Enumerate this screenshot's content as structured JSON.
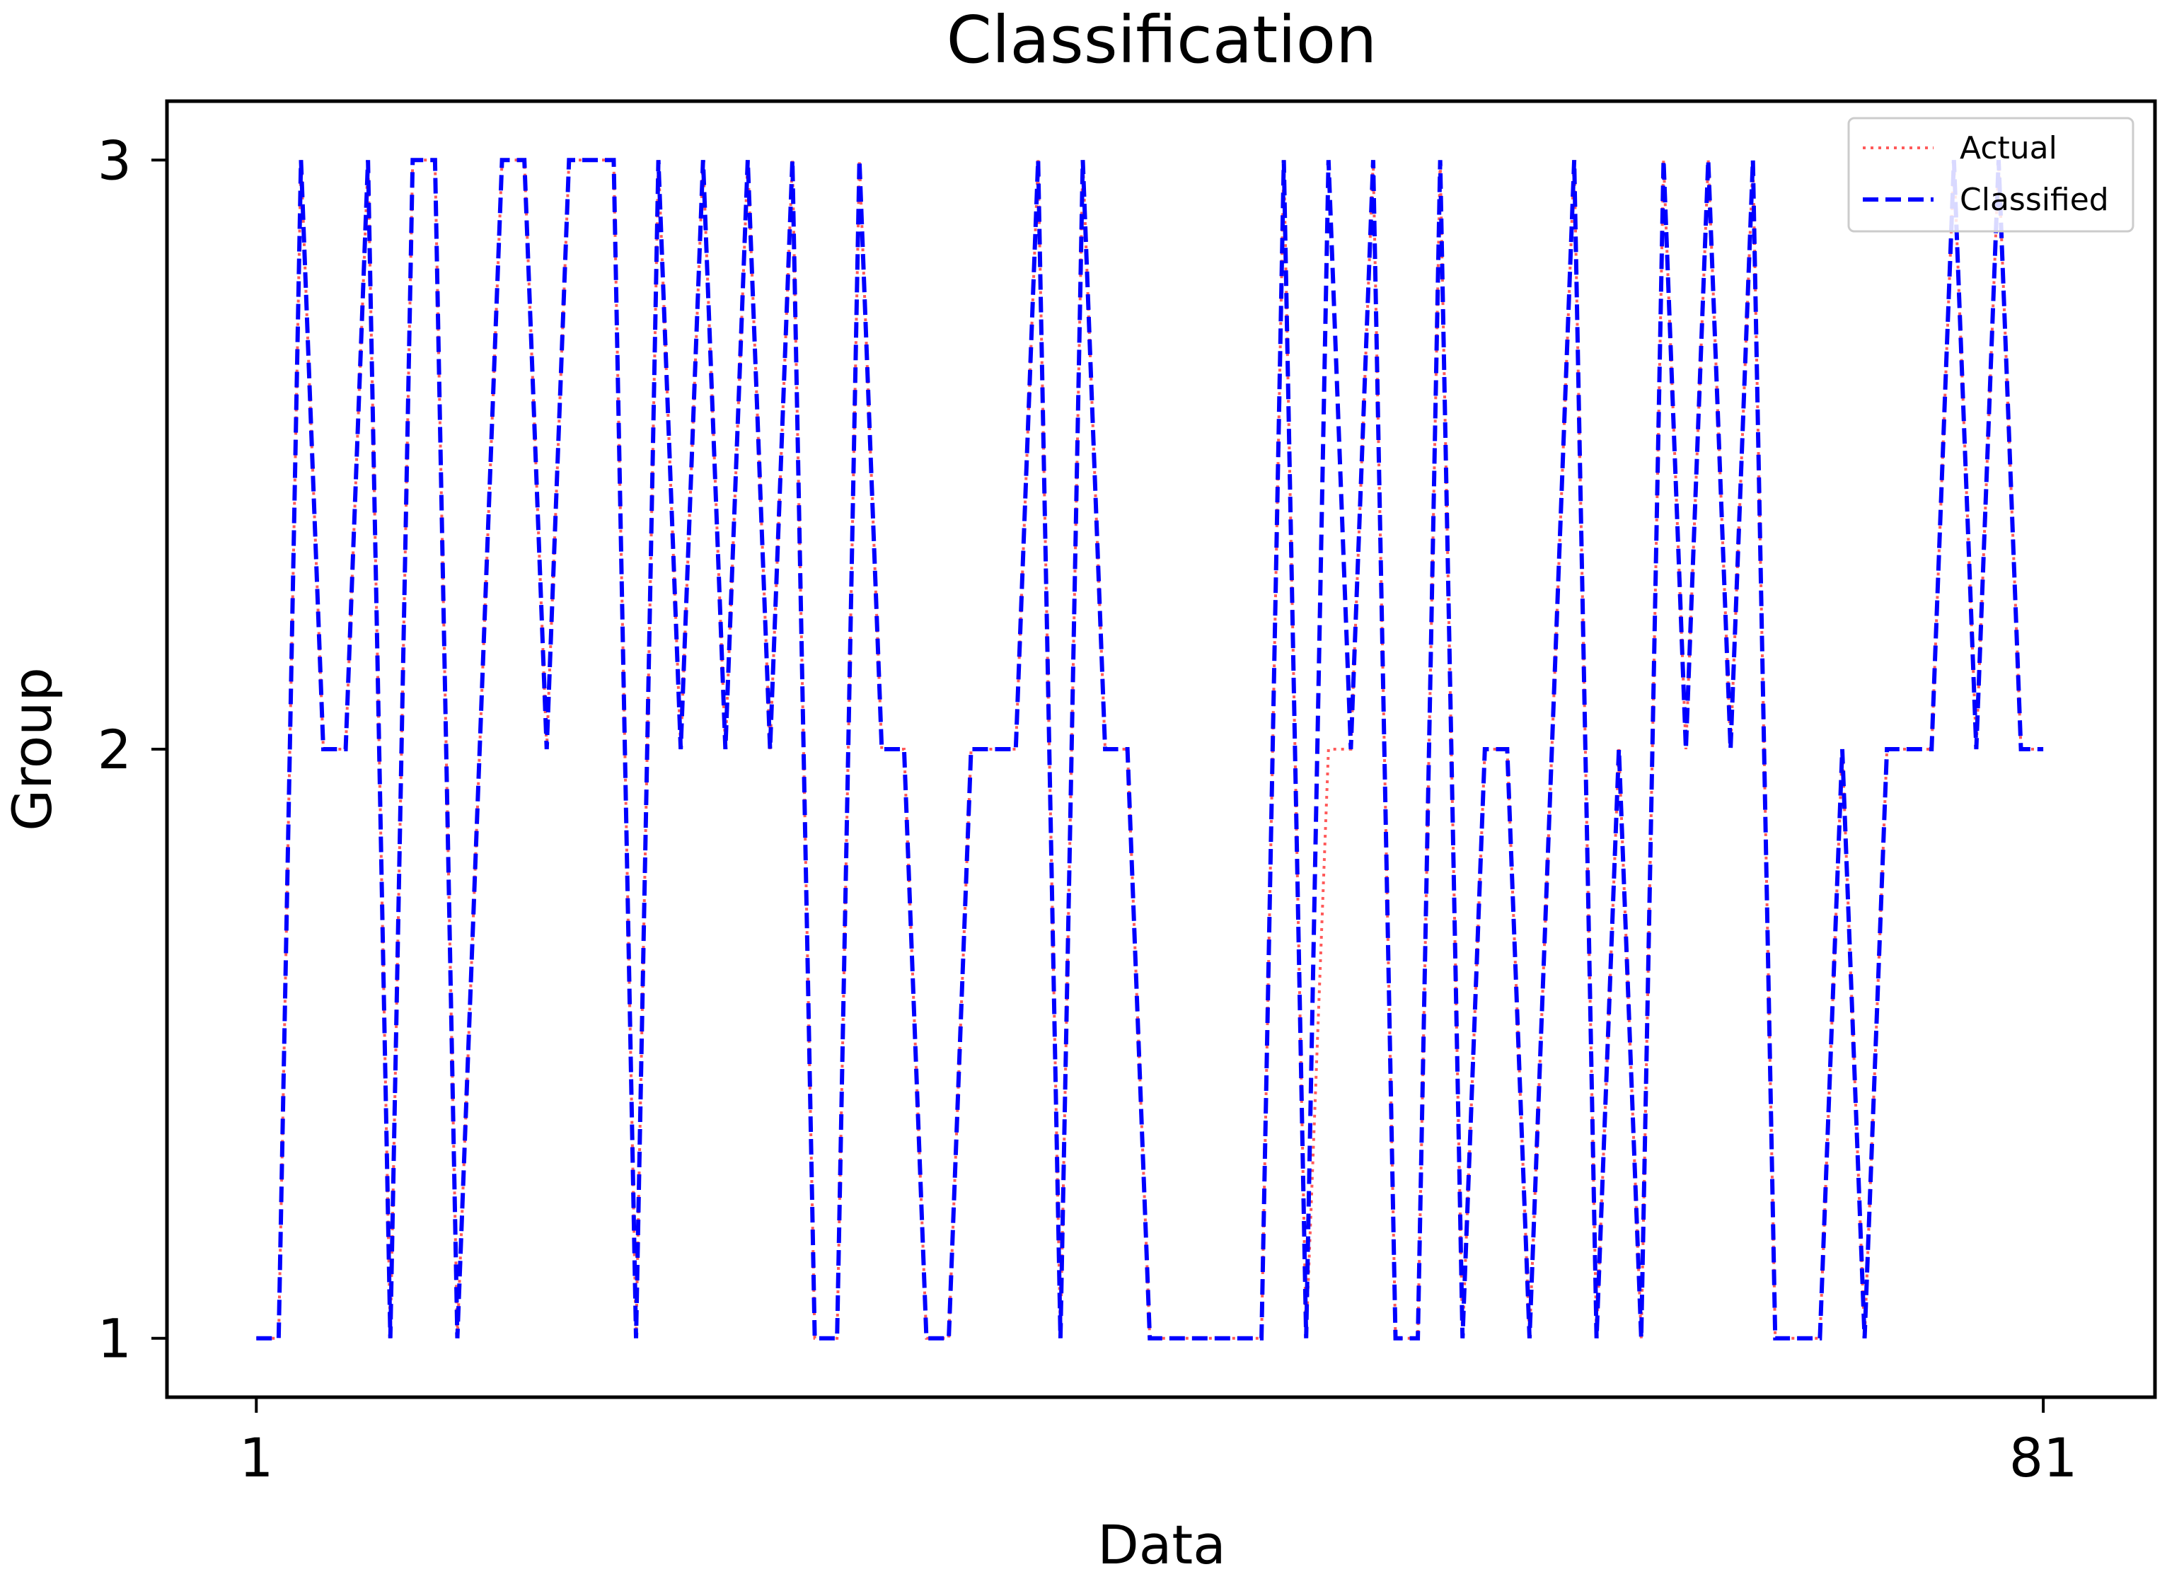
{
  "chart_data": {
    "type": "line",
    "title": "Classification",
    "xlabel": "Data",
    "ylabel": "Group",
    "xlim": [
      -3,
      86
    ],
    "ylim": [
      0.9,
      3.1
    ],
    "xticks": [
      1,
      81
    ],
    "xtick_labels": [
      "1",
      "81"
    ],
    "yticks": [
      1,
      2,
      3
    ],
    "ytick_labels": [
      "1",
      "2",
      "3"
    ],
    "grid": false,
    "legend_position": "top-right",
    "x": [
      1,
      2,
      3,
      4,
      5,
      6,
      7,
      8,
      9,
      10,
      11,
      12,
      13,
      14,
      15,
      16,
      17,
      18,
      19,
      20,
      21,
      22,
      23,
      24,
      25,
      26,
      27,
      28,
      29,
      30,
      31,
      32,
      33,
      34,
      35,
      36,
      37,
      38,
      39,
      40,
      41,
      42,
      43,
      44,
      45,
      46,
      47,
      48,
      49,
      50,
      51,
      52,
      53,
      54,
      55,
      56,
      57,
      58,
      59,
      60,
      61,
      62,
      63,
      64,
      65,
      66,
      67,
      68,
      69,
      70,
      71,
      72,
      73,
      74,
      75,
      76,
      77,
      78,
      79,
      80,
      81
    ],
    "series": [
      {
        "name": "Actual",
        "color": "#ff5a5a",
        "style": "dotted",
        "values": [
          1,
          1,
          3,
          2,
          2,
          3,
          1,
          3,
          3,
          1,
          2,
          3,
          3,
          2,
          3,
          3,
          3,
          1,
          3,
          2,
          3,
          2,
          3,
          2,
          3,
          1,
          1,
          3,
          2,
          2,
          1,
          1,
          2,
          2,
          2,
          3,
          1,
          3,
          2,
          2,
          1,
          1,
          1,
          1,
          1,
          1,
          3,
          1,
          2,
          2,
          3,
          1,
          1,
          3,
          1,
          2,
          2,
          1,
          2,
          3,
          1,
          2,
          1,
          3,
          2,
          3,
          2,
          3,
          1,
          1,
          1,
          2,
          1,
          2,
          2,
          2,
          3,
          2,
          3,
          2,
          2
        ]
      },
      {
        "name": "Classified",
        "color": "#0000ff",
        "style": "dashed",
        "values": [
          1,
          1,
          3,
          2,
          2,
          3,
          1,
          3,
          3,
          1,
          2,
          3,
          3,
          2,
          3,
          3,
          3,
          1,
          3,
          2,
          3,
          2,
          3,
          2,
          3,
          1,
          1,
          3,
          2,
          2,
          1,
          1,
          2,
          2,
          2,
          3,
          1,
          3,
          2,
          2,
          1,
          1,
          1,
          1,
          1,
          1,
          3,
          1,
          3,
          2,
          3,
          1,
          1,
          3,
          1,
          2,
          2,
          1,
          2,
          3,
          1,
          2,
          1,
          3,
          2,
          3,
          2,
          3,
          1,
          1,
          1,
          2,
          1,
          2,
          2,
          2,
          3,
          2,
          3,
          2,
          2
        ]
      }
    ]
  }
}
